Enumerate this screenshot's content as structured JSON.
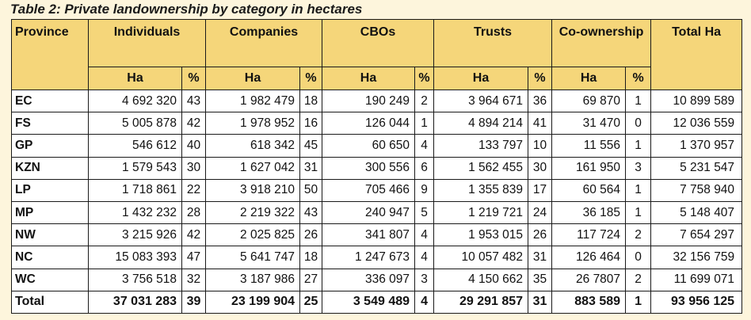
{
  "caption": "Table 2: Private landownership by category in hectares",
  "header": {
    "province": "Province",
    "categories": [
      "Individuals",
      "Companies",
      "CBOs",
      "Trusts",
      "Co-ownership"
    ],
    "total": "Total Ha",
    "ha": "Ha",
    "pct": "%"
  },
  "rows": [
    {
      "province": "EC",
      "values": [
        "4 692 320",
        "43",
        "1 982 479",
        "18",
        "190 249",
        "2",
        "3 964 671",
        "36",
        "69 870",
        "1"
      ],
      "total": "10 899 589"
    },
    {
      "province": "FS",
      "values": [
        "5 005 878",
        "42",
        "1 978 952",
        "16",
        "126 044",
        "1",
        "4 894 214",
        "41",
        "31 470",
        "0"
      ],
      "total": "12 036 559"
    },
    {
      "province": "GP",
      "values": [
        "546 612",
        "40",
        "618 342",
        "45",
        "60 650",
        "4",
        "133 797",
        "10",
        "11 556",
        "1"
      ],
      "total": "1 370 957"
    },
    {
      "province": "KZN",
      "values": [
        "1 579 543",
        "30",
        "1 627 042",
        "31",
        "300 556",
        "6",
        "1 562 455",
        "30",
        "161 950",
        "3"
      ],
      "total": "5 231 547"
    },
    {
      "province": "LP",
      "values": [
        "1 718 861",
        "22",
        "3 918 210",
        "50",
        "705 466",
        "9",
        "1 355 839",
        "17",
        "60 564",
        "1"
      ],
      "total": "7 758 940"
    },
    {
      "province": "MP",
      "values": [
        "1 432 232",
        "28",
        "2 219 322",
        "43",
        "240 947",
        "5",
        "1 219 721",
        "24",
        "36 185",
        "1"
      ],
      "total": "5 148 407"
    },
    {
      "province": "NW",
      "values": [
        "3 215 926",
        "42",
        "2 025 825",
        "26",
        "341 807",
        "4",
        "1 953 015",
        "26",
        "117 724",
        "2"
      ],
      "total": "7 654 297"
    },
    {
      "province": "NC",
      "values": [
        "15 083 393",
        "47",
        "5 641 747",
        "18",
        "1 247 673",
        "4",
        "10 057 482",
        "31",
        "126 464",
        "0"
      ],
      "total": "32 156 759"
    },
    {
      "province": "WC",
      "values": [
        "3 756 518",
        "32",
        "3 187 986",
        "27",
        "336 097",
        "3",
        "4 150 662",
        "35",
        "26 7807",
        "2"
      ],
      "total": "11 699 071"
    }
  ],
  "total_row": {
    "province": "Total",
    "values": [
      "37 031 283",
      "39",
      "23 199 904",
      "25",
      "3 549 489",
      "4",
      "29 291 857",
      "31",
      "883 589",
      "1"
    ],
    "total": "93 956 125"
  }
}
